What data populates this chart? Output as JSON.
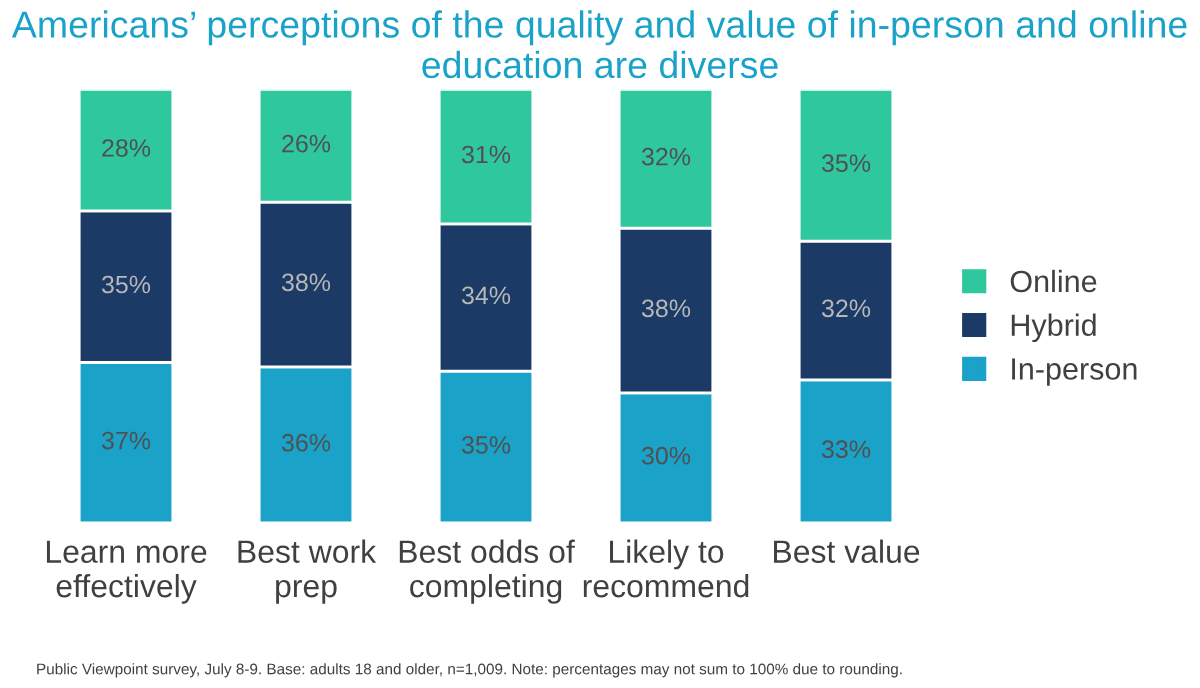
{
  "chart_data": {
    "type": "bar",
    "stacked": true,
    "title": "Americans’ perceptions of the quality and value of in-person and online education are diverse",
    "categories": [
      "Learn more\neffectively",
      "Best work\nprep",
      "Best odds of\ncompleting",
      "Likely to\nrecommend",
      "Best value"
    ],
    "series": [
      {
        "name": "In-person",
        "color": "#1aa2c9",
        "values": [
          37,
          36,
          35,
          30,
          33
        ],
        "value_labels": [
          "37%",
          "36%",
          "35%",
          "30%",
          "33%"
        ]
      },
      {
        "name": "Hybrid",
        "color": "#1b3a66",
        "values": [
          35,
          38,
          34,
          38,
          32
        ],
        "value_labels": [
          "35%",
          "38%",
          "34%",
          "38%",
          "32%"
        ]
      },
      {
        "name": "Online",
        "color": "#2ec79e",
        "values": [
          28,
          26,
          31,
          32,
          35
        ],
        "value_labels": [
          "28%",
          "26%",
          "31%",
          "32%",
          "35%"
        ]
      }
    ],
    "legend": "right",
    "grid": false,
    "tick_labels": "x",
    "annotations": [
      "Public Viewpoint survey, July 8-9. Base: adults 18 and older, n=1,009. Note: percentages may not sum to 100% due to rounding."
    ]
  }
}
